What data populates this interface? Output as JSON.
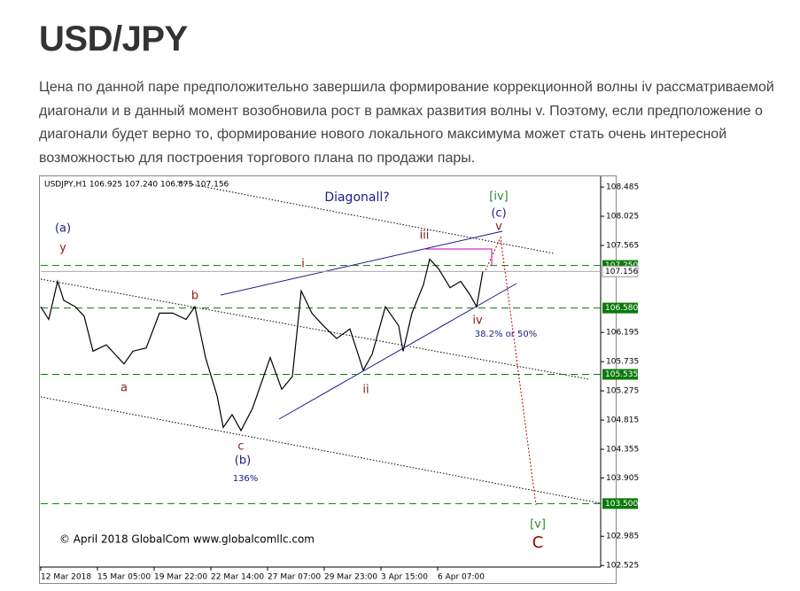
{
  "header": {
    "title": "USD/JPY"
  },
  "paragraph": "Цена по данной паре предположительно завершила формирование коррекционной волны iv рассматриваемой диагонали и в данный момент возобновила рост в рамках развития волны v. Поэтому, если предположение о диагонали будет верно то, формирование нового локального максимума может стать очень интересной возможностью для построения торгового плана по продажи пары.",
  "chart_data": {
    "type": "line",
    "info": "USDJPY,H1  106.925 107.240 106.875 107.156",
    "xlim": [
      0,
      632
    ],
    "xticks": [
      {
        "value": 0,
        "label": "12 Mar 2018"
      },
      {
        "value": 64,
        "label": "15 Mar 05:00"
      },
      {
        "value": 128,
        "label": "19 Mar 22:00"
      },
      {
        "value": 192,
        "label": "22 Mar 14:00"
      },
      {
        "value": 256,
        "label": "27 Mar 07:00"
      },
      {
        "value": 320,
        "label": "29 Mar 23:00"
      },
      {
        "value": 384,
        "label": "3 Apr 15:00"
      },
      {
        "value": 448,
        "label": "6 Apr 07:00"
      }
    ],
    "ylim": [
      102.5,
      108.64
    ],
    "yticks": [
      108.485,
      108.025,
      107.565,
      106.195,
      105.735,
      105.275,
      104.815,
      104.355,
      103.905,
      102.985,
      102.525
    ],
    "levels": [
      {
        "value": 107.25,
        "label": "107.250"
      },
      {
        "value": 106.58,
        "label": "106.580"
      },
      {
        "value": 105.535,
        "label": "105.535"
      },
      {
        "value": 103.5,
        "label": "103.500"
      }
    ],
    "current": {
      "value": 107.156,
      "label": "107.156"
    },
    "series": [
      {
        "name": "USDJPY",
        "color": "#000000",
        "x": [
          0,
          9,
          19,
          26,
          39,
          49,
          59,
          74,
          94,
          104,
          119,
          134,
          149,
          164,
          174,
          186,
          199,
          206,
          216,
          226,
          239,
          249,
          259,
          272,
          284,
          294,
          306,
          319,
          334,
          349,
          364,
          374,
          389,
          404,
          409,
          419,
          432,
          439,
          449,
          462,
          474,
          484,
          492,
          499
        ],
        "values": [
          106.6,
          106.4,
          107.0,
          106.7,
          106.6,
          106.45,
          105.9,
          106.0,
          105.7,
          105.9,
          105.95,
          106.5,
          106.5,
          106.4,
          106.6,
          105.8,
          105.2,
          104.7,
          104.9,
          104.65,
          105.0,
          105.4,
          105.8,
          105.3,
          105.5,
          106.85,
          106.5,
          106.3,
          106.1,
          106.25,
          105.6,
          105.85,
          106.6,
          106.3,
          105.9,
          106.5,
          106.95,
          107.35,
          107.2,
          106.9,
          107.0,
          106.8,
          106.6,
          107.156
        ]
      }
    ],
    "annotations": [
      "(a)",
      "y",
      "b",
      "a",
      "c",
      "(b)",
      "136%",
      "i",
      "ii",
      "iii",
      "iv",
      "38.2% or 50%",
      "v",
      "[iv]",
      "(c)",
      "Diagonall?",
      "[v]",
      "C",
      "© April 2018 GlobalCom www.globalcomllc.com"
    ]
  }
}
